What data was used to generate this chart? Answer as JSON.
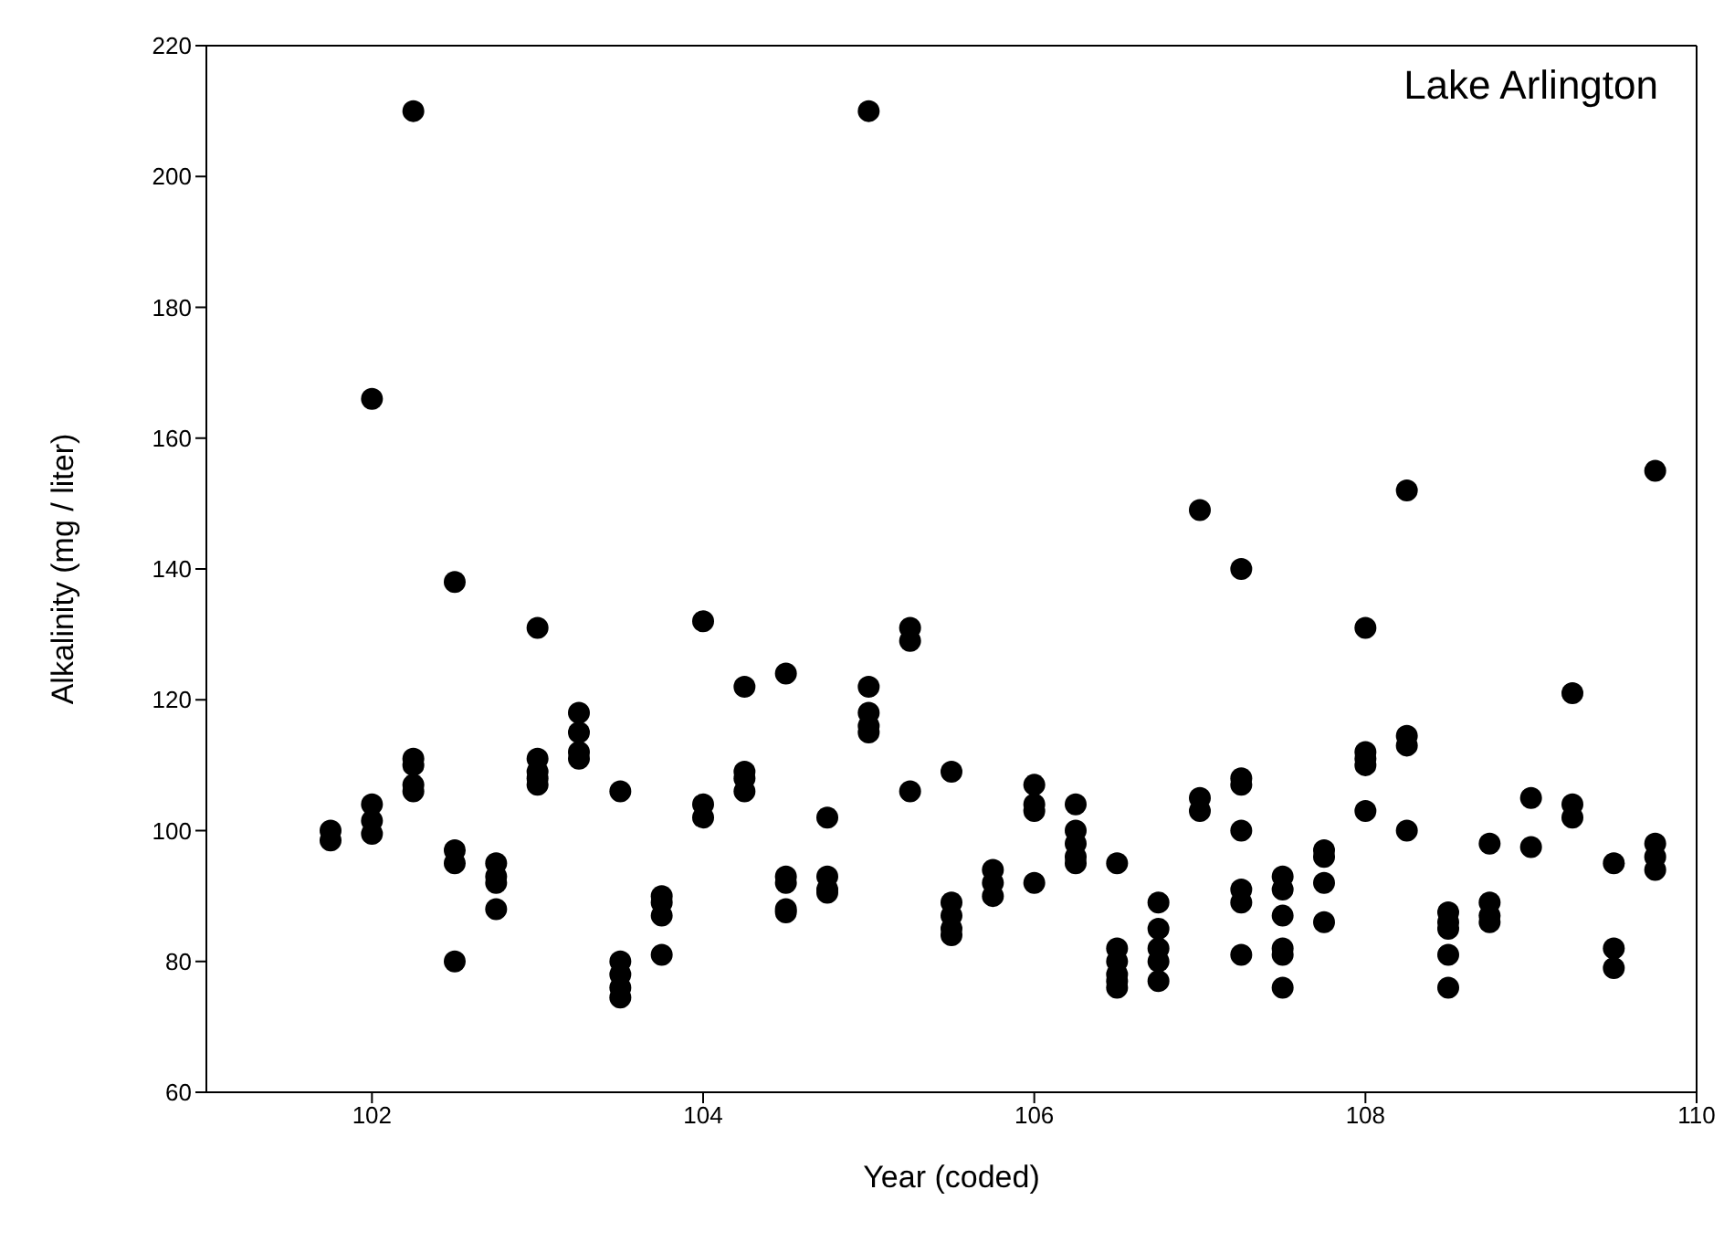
{
  "chart_data": {
    "type": "scatter",
    "xlabel": "Year (coded)",
    "ylabel": "Alkalinity (mg / liter)",
    "annotations": [
      "Lake Arlington"
    ],
    "color": "#000000",
    "marker": "circle",
    "grid": false,
    "legend": false,
    "xlim": [
      101,
      110
    ],
    "xticks": [
      102,
      104,
      106,
      108,
      110
    ],
    "ylim": [
      60,
      220
    ],
    "yticks": [
      60,
      80,
      100,
      120,
      140,
      160,
      180,
      200,
      220
    ],
    "x": [
      101.75,
      101.75,
      102,
      102,
      102,
      102,
      102.25,
      102.25,
      102.25,
      102.25,
      102.25,
      102.5,
      102.5,
      102.5,
      102.5,
      102.75,
      102.75,
      102.75,
      102.75,
      103,
      103,
      103,
      103,
      103,
      103.25,
      103.25,
      103.25,
      103.25,
      103.5,
      103.5,
      103.5,
      103.5,
      103.5,
      103.75,
      103.75,
      103.75,
      103.75,
      104,
      104,
      104,
      104.25,
      104.25,
      104.25,
      104.25,
      104.5,
      104.5,
      104.5,
      104.5,
      104.5,
      104.75,
      104.75,
      104.75,
      104.75,
      105,
      105,
      105,
      105,
      105,
      105.25,
      105.25,
      105.25,
      105.5,
      105.5,
      105.5,
      105.5,
      105.5,
      105.75,
      105.75,
      105.75,
      106,
      106,
      106,
      106,
      106.25,
      106.25,
      106.25,
      106.25,
      106.25,
      106.5,
      106.5,
      106.5,
      106.5,
      106.5,
      106.5,
      106.75,
      106.75,
      106.75,
      106.75,
      106.75,
      107,
      107,
      107,
      107.25,
      107.25,
      107.25,
      107.25,
      107.25,
      107.25,
      107.25,
      107.5,
      107.5,
      107.5,
      107.5,
      107.5,
      107.5,
      107.75,
      107.75,
      107.75,
      107.75,
      108,
      108,
      108,
      108,
      108,
      108.25,
      108.25,
      108.25,
      108.25,
      108.5,
      108.5,
      108.5,
      108.5,
      108.5,
      108.75,
      108.75,
      108.75,
      108.75,
      109,
      109,
      109.25,
      109.25,
      109.25,
      109.5,
      109.5,
      109.5,
      109.75,
      109.75,
      109.75,
      109.75
    ],
    "values": [
      98.5,
      100,
      166,
      104,
      101.5,
      99.5,
      210,
      111,
      110,
      107,
      106,
      138,
      97,
      95,
      80,
      95,
      93,
      92,
      88,
      131,
      111,
      109,
      108,
      107,
      118,
      115,
      112,
      111,
      106,
      80,
      78,
      76,
      74.5,
      90,
      89,
      87,
      81,
      132,
      104,
      102,
      122,
      109,
      108,
      106,
      124,
      93,
      92,
      88,
      87.5,
      102,
      93,
      91,
      90.5,
      210,
      122,
      118,
      116,
      115,
      131,
      129,
      106,
      109,
      89,
      87,
      85,
      84,
      94,
      92,
      90,
      107,
      104,
      103,
      92,
      104,
      100,
      98,
      96,
      95,
      95,
      82,
      80,
      78,
      77,
      76,
      89,
      85,
      82,
      80,
      77,
      149,
      105,
      103,
      140,
      108,
      107,
      100,
      91,
      89,
      81,
      93,
      91,
      87,
      82,
      81,
      76,
      97,
      96,
      92,
      86,
      131,
      112,
      111,
      110,
      103,
      152,
      114.5,
      113,
      100,
      87.5,
      86,
      85,
      81,
      76,
      98,
      89,
      87,
      86,
      105,
      97.5,
      121,
      104,
      102,
      95,
      82,
      79,
      155,
      98,
      96,
      94
    ]
  }
}
